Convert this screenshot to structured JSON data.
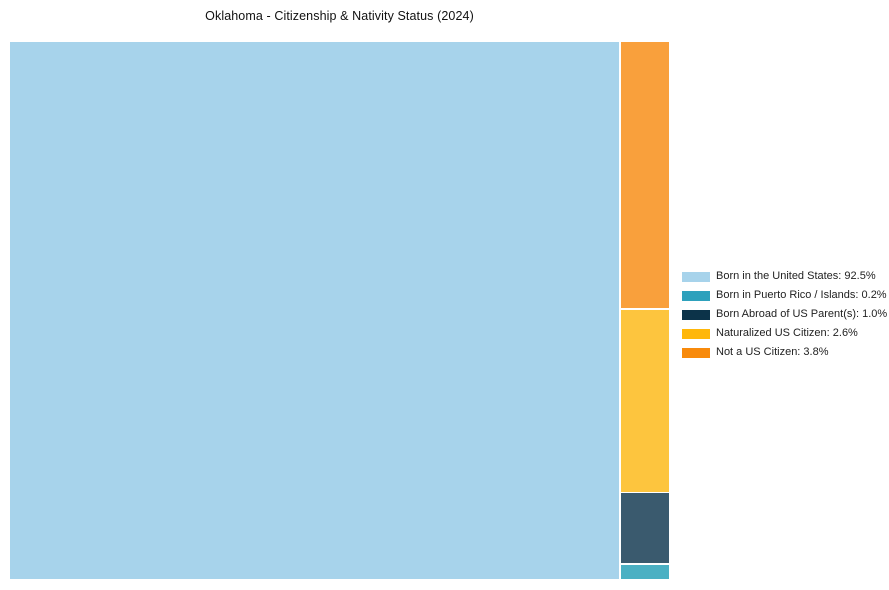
{
  "title": "Oklahoma - Citizenship & Nativity Status (2024)",
  "chart_data": {
    "type": "treemap",
    "title": "Oklahoma - Citizenship & Nativity Status (2024)",
    "unit": "%",
    "legend_position": "right",
    "categories": [
      "Born in the United States",
      "Born in Puerto Rico / Islands",
      "Born Abroad of US Parent(s)",
      "Naturalized US Citizen",
      "Not a US Citizen"
    ],
    "values": [
      92.5,
      0.2,
      1.0,
      2.6,
      3.8
    ],
    "series": [
      {
        "label": "Born in the United States",
        "value": 92.5,
        "display": "Born in the United States: 92.5%",
        "legend_color": "#a7d3eb",
        "fill_color": "#a7d3eb"
      },
      {
        "label": "Born in Puerto Rico / Islands",
        "value": 0.2,
        "display": "Born in Puerto Rico / Islands: 0.2%",
        "legend_color": "#2ea1bc",
        "fill_color": "#4bb0c3"
      },
      {
        "label": "Born Abroad of US Parent(s)",
        "value": 1.0,
        "display": "Born Abroad of US Parent(s): 1.0%",
        "legend_color": "#0c3349",
        "fill_color": "#3a5a6e"
      },
      {
        "label": "Naturalized US Citizen",
        "value": 2.6,
        "display": "Naturalized US Citizen: 2.6%",
        "legend_color": "#ffb70a",
        "fill_color": "#fdc53e"
      },
      {
        "label": "Not a US Citizen",
        "value": 3.8,
        "display": "Not a US Citizen: 3.8%",
        "legend_color": "#f88a0b",
        "fill_color": "#f9a03c"
      }
    ],
    "side_column_order_top_to_bottom": [
      4,
      3,
      2,
      1
    ]
  }
}
